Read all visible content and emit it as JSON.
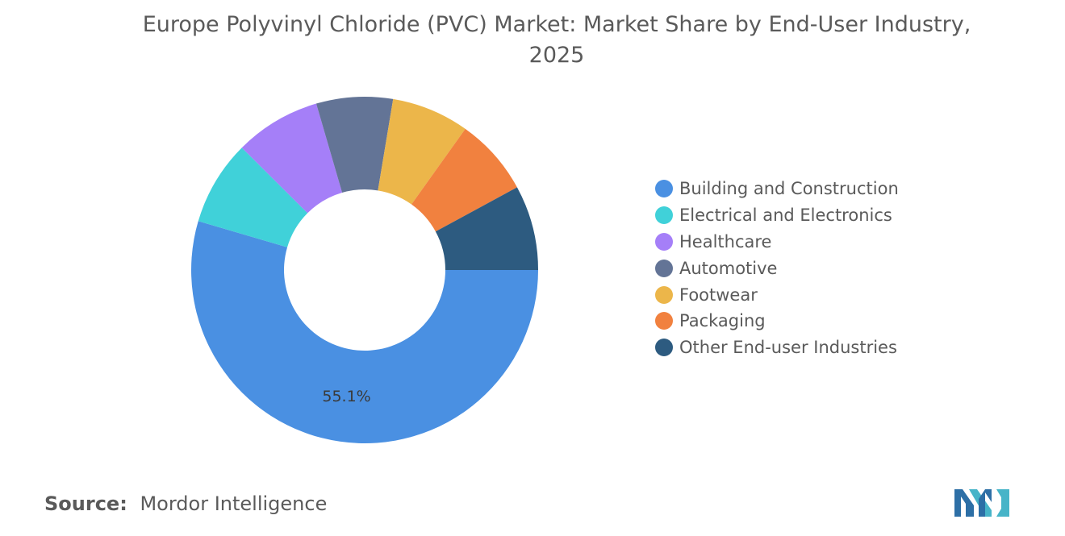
{
  "chart_data": {
    "type": "pie",
    "variant": "donut",
    "title": "Europe Polyvinyl Chloride (PVC) Market: Market Share by End-User Industry, 2025",
    "categories": [
      "Building and Construction",
      "Electrical and Electronics",
      "Healthcare",
      "Automotive",
      "Footwear",
      "Packaging",
      "Other End-user Industries"
    ],
    "values": [
      55.1,
      8.0,
      8.1,
      7.2,
      7.3,
      7.3,
      8.0
    ],
    "colors": [
      "#4a90e2",
      "#40d1d9",
      "#a57ff8",
      "#637496",
      "#ecb64a",
      "#f1813f",
      "#2d5b80"
    ],
    "data_labels": [
      {
        "category": "Building and Construction",
        "text": "55.1%"
      }
    ],
    "legend_position": "right",
    "start_angle_degrees": 0,
    "direction": "clockwise-from-3-oclock"
  },
  "title_lines": [
    "Europe Polyvinyl Chloride (PVC) Market: Market Share by End-User Industry,",
    "2025"
  ],
  "source": {
    "label": "Source:",
    "text": "Mordor Intelligence"
  },
  "logo_icon": "mordor-intelligence-logo-icon"
}
